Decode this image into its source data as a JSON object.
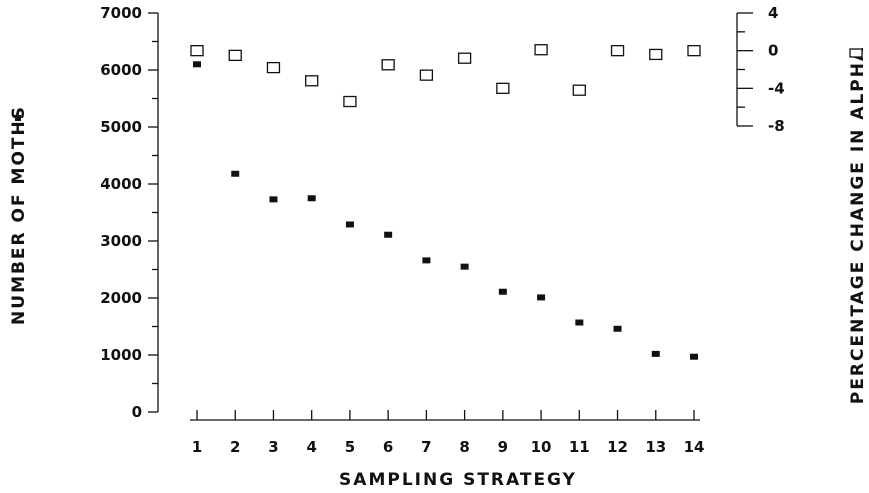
{
  "chart_data": {
    "type": "scatter",
    "title": "",
    "xlabel": "SAMPLING STRATEGY",
    "ylabel": "NUMBER OF MOTHS",
    "y2label": "PERCENTAGE CHANGE IN ALPHA",
    "x": [
      1,
      2,
      3,
      4,
      5,
      6,
      7,
      8,
      9,
      10,
      11,
      12,
      13,
      14
    ],
    "ylim": [
      0,
      7000
    ],
    "yticks": [
      0,
      1000,
      2000,
      3000,
      4000,
      5000,
      6000,
      7000
    ],
    "y2lim": [
      -8,
      4
    ],
    "y2ticks": [
      4,
      0,
      -4,
      -8
    ],
    "series": [
      {
        "name": "",
        "marker": "filled-square",
        "axis": "left",
        "values": [
          6100,
          4180,
          3730,
          3750,
          3290,
          3110,
          2660,
          2550,
          2110,
          2010,
          1570,
          1460,
          1020,
          970
        ]
      },
      {
        "name": "",
        "marker": "open-square",
        "axis": "right",
        "values": [
          0.0,
          -0.5,
          -1.8,
          -3.2,
          -5.4,
          -1.5,
          -2.6,
          -0.8,
          -4.0,
          0.1,
          -4.2,
          0.0,
          -0.4,
          0.0
        ]
      }
    ],
    "legend_markers": {
      "left_axis": "filled-square",
      "right_axis": "open-square"
    }
  }
}
